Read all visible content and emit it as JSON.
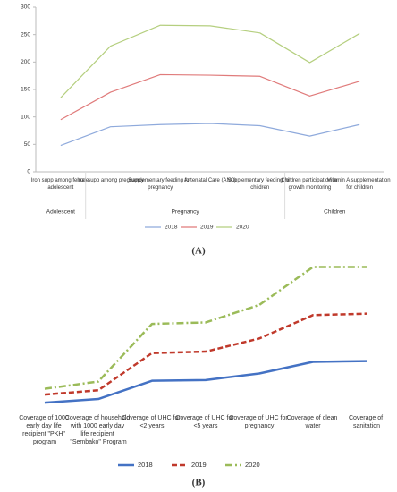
{
  "chart_data": [
    {
      "type": "line",
      "label": "(A)",
      "categories": [
        "Iron supp among female adolescent",
        "Iron supp among pregnancy",
        "Supplementary feeding for pregnancy",
        "Antenatal Care (ANC)",
        "Supplementary feeding for children",
        "Children participation in growth monitoring",
        "Vitamin A supplementation for children"
      ],
      "category_groups": [
        "Adolescent",
        "Pregnancy",
        "Pregnancy",
        "Pregnancy",
        "Pregnancy",
        "Children",
        "Children"
      ],
      "series": [
        {
          "name": "2018",
          "color": "#8faadc",
          "values": [
            48,
            82,
            86,
            88,
            84,
            65,
            86
          ]
        },
        {
          "name": "2019",
          "color": "#e07b7b",
          "values": [
            95,
            145,
            177,
            176,
            174,
            138,
            165
          ]
        },
        {
          "name": "2020",
          "color": "#b5cf7f",
          "values": [
            135,
            229,
            267,
            266,
            253,
            199,
            252
          ]
        }
      ],
      "ylim": [
        0,
        300
      ],
      "yticks": [
        0,
        50,
        100,
        150,
        200,
        250,
        300
      ],
      "legend": "bottom"
    },
    {
      "type": "line",
      "label": "(B)",
      "categories": [
        "Coverage of 1000 early day life recipient \"PKH\" program",
        "Coverage of household with 1000 early day life recipient \"Sembako\" Program",
        "Coverage of UHC for <2 years",
        "Coverage of UHC for <5 years",
        "Coverage of UHC for pregnancy",
        "Coverage of clean water",
        "Coverage of sanitation"
      ],
      "series": [
        {
          "name": "2018",
          "color": "#4472c4",
          "dash": "solid",
          "values": [
            3,
            5.5,
            18,
            18.5,
            23,
            31,
            31.5
          ]
        },
        {
          "name": "2019",
          "color": "#c0392b",
          "dash": "dashed",
          "values": [
            8.5,
            11.5,
            37,
            38,
            47,
            63,
            64
          ]
        },
        {
          "name": "2020",
          "color": "#9bbb59",
          "dash": "dashdot",
          "values": [
            12.5,
            17.5,
            57,
            58,
            70,
            96,
            96
          ]
        }
      ],
      "ylim": [
        0,
        100
      ],
      "legend": "bottom"
    }
  ]
}
